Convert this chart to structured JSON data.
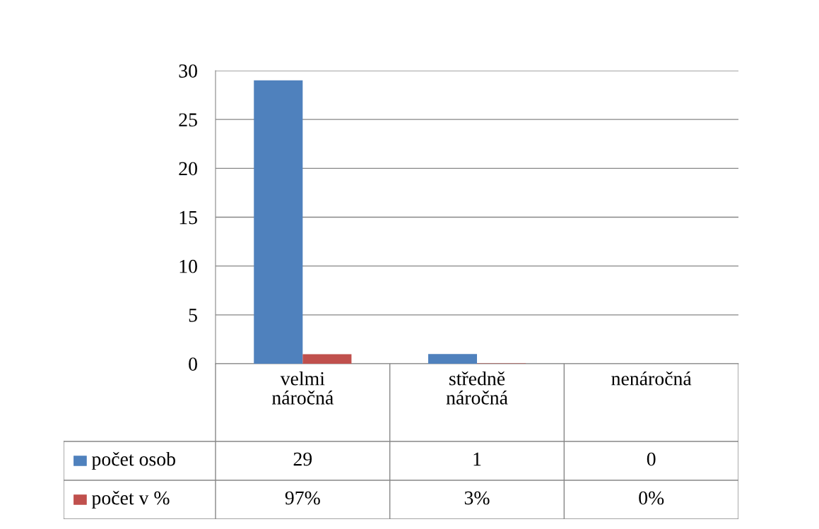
{
  "chart_data": {
    "type": "bar",
    "categories": [
      "velmi náročná",
      "středně náročná",
      "nenáročná"
    ],
    "series": [
      {
        "name": "počet osob",
        "color": "#4f81bd",
        "values": [
          29,
          1,
          0
        ],
        "value_labels": [
          "29",
          "1",
          "0"
        ]
      },
      {
        "name": "počet v %",
        "color": "#c0504d",
        "values": [
          0.97,
          0.03,
          0
        ],
        "value_labels": [
          "97%",
          "3%",
          "0%"
        ]
      }
    ],
    "ylim": [
      0,
      30
    ],
    "yticks": [
      0,
      5,
      10,
      15,
      20,
      25,
      30
    ],
    "grid": "y",
    "legend": "bottom"
  }
}
